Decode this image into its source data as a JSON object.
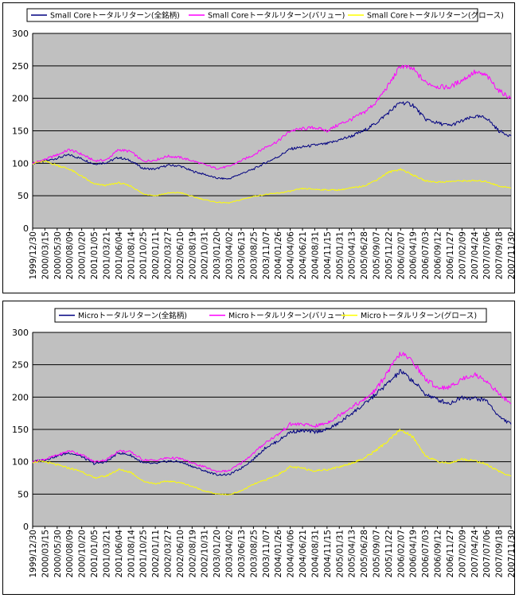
{
  "colors": {
    "plot_bg": "#c0c0c0",
    "grid": "#000000",
    "all": "#000080",
    "value": "#ff00ff",
    "growth": "#ffff00"
  },
  "chart_data": [
    {
      "type": "line",
      "grid": true,
      "legend_placement": "top",
      "ylim": [
        0,
        300
      ],
      "yticks": [
        0,
        50,
        100,
        150,
        200,
        250,
        300
      ],
      "x_tick_labels": [
        "1999/12/30",
        "2000/03/15",
        "2000/05/30",
        "2000/08/09",
        "2000/10/20",
        "2001/01/05",
        "2001/03/21",
        "2001/06/04",
        "2001/08/14",
        "2001/10/25",
        "2002/01/11",
        "2002/03/27",
        "2002/06/10",
        "2002/08/19",
        "2002/10/31",
        "2003/01/20",
        "2003/04/02",
        "2003/06/13",
        "2003/08/25",
        "2003/11/07",
        "2004/01/26",
        "2004/04/06",
        "2004/06/21",
        "2004/08/31",
        "2004/11/15",
        "2005/01/31",
        "2005/04/13",
        "2005/06/28",
        "2005/09/07",
        "2005/11/22",
        "2006/02/07",
        "2006/04/19",
        "2006/07/03",
        "2006/09/12",
        "2006/11/27",
        "2007/02/09",
        "2007/04/24",
        "2007/07/06",
        "2007/09/18",
        "2007/11/30"
      ],
      "series": [
        {
          "name": "Small Coreトータルリターン(全銘柄)",
          "color": "#000080",
          "values": [
            100,
            103,
            108,
            113,
            107,
            99,
            101,
            109,
            104,
            92,
            91,
            97,
            96,
            88,
            83,
            77,
            76,
            84,
            91,
            101,
            110,
            122,
            125,
            128,
            130,
            136,
            142,
            150,
            162,
            178,
            194,
            190,
            168,
            162,
            158,
            165,
            172,
            170,
            150,
            142
          ]
        },
        {
          "name": "Small Coreトータルリターン(バリュー)",
          "color": "#ff00ff",
          "values": [
            100,
            106,
            113,
            121,
            114,
            104,
            105,
            121,
            118,
            103,
            105,
            111,
            109,
            104,
            98,
            92,
            95,
            104,
            113,
            125,
            134,
            150,
            153,
            155,
            150,
            160,
            168,
            178,
            194,
            220,
            250,
            245,
            225,
            218,
            217,
            228,
            240,
            235,
            212,
            200
          ]
        },
        {
          "name": "Small Coreトータルリターン(グロース)",
          "color": "#ffff00",
          "values": [
            100,
            103,
            97,
            91,
            80,
            68,
            66,
            70,
            65,
            53,
            50,
            54,
            55,
            49,
            44,
            40,
            39,
            44,
            49,
            52,
            54,
            57,
            61,
            60,
            59,
            59,
            62,
            65,
            74,
            86,
            91,
            82,
            73,
            71,
            72,
            73,
            73,
            72,
            65,
            62
          ]
        }
      ]
    },
    {
      "type": "line",
      "grid": true,
      "legend_placement": "top",
      "ylim": [
        0,
        300
      ],
      "yticks": [
        0,
        50,
        100,
        150,
        200,
        250,
        300
      ],
      "x_tick_labels": [
        "1999/12/30",
        "2000/03/15",
        "2000/05/30",
        "2000/08/09",
        "2000/10/20",
        "2001/01/05",
        "2001/03/21",
        "2001/06/04",
        "2001/08/14",
        "2001/10/25",
        "2002/01/11",
        "2002/03/27",
        "2002/06/10",
        "2002/08/19",
        "2002/10/31",
        "2003/01/20",
        "2003/04/02",
        "2003/06/13",
        "2003/08/25",
        "2003/11/07",
        "2004/01/26",
        "2004/04/06",
        "2004/06/21",
        "2004/08/31",
        "2004/11/15",
        "2005/01/31",
        "2005/04/13",
        "2005/06/28",
        "2005/09/07",
        "2005/11/22",
        "2006/02/07",
        "2006/04/19",
        "2006/07/03",
        "2006/09/12",
        "2006/11/27",
        "2007/02/09",
        "2007/04/24",
        "2007/07/06",
        "2007/09/18",
        "2007/11/30"
      ],
      "series": [
        {
          "name": "Microトータルリターン(全銘柄)",
          "color": "#000080",
          "values": [
            100,
            103,
            109,
            114,
            108,
            97,
            100,
            114,
            110,
            98,
            97,
            101,
            100,
            93,
            86,
            80,
            80,
            90,
            104,
            122,
            132,
            146,
            148,
            146,
            150,
            160,
            175,
            188,
            205,
            222,
            240,
            225,
            205,
            196,
            190,
            200,
            198,
            195,
            170,
            158
          ]
        },
        {
          "name": "Microトータルリターン(バリュー)",
          "color": "#ff00ff",
          "values": [
            100,
            104,
            110,
            117,
            111,
            100,
            103,
            117,
            115,
            103,
            102,
            106,
            105,
            98,
            92,
            85,
            86,
            98,
            113,
            130,
            142,
            158,
            158,
            155,
            160,
            172,
            185,
            195,
            212,
            240,
            268,
            255,
            228,
            215,
            215,
            228,
            235,
            225,
            205,
            190
          ]
        },
        {
          "name": "Microトータルリターン(グロース)",
          "color": "#ffff00",
          "values": [
            100,
            100,
            95,
            90,
            85,
            75,
            78,
            88,
            84,
            70,
            66,
            70,
            68,
            62,
            55,
            50,
            49,
            55,
            65,
            72,
            80,
            92,
            90,
            86,
            88,
            92,
            98,
            105,
            118,
            132,
            150,
            138,
            110,
            100,
            98,
            104,
            102,
            96,
            85,
            78
          ]
        }
      ]
    }
  ]
}
